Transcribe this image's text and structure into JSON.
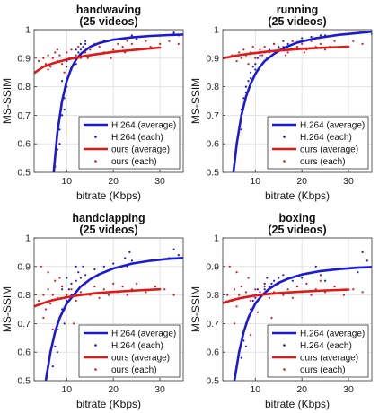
{
  "colors": {
    "h264": "#1a1ad6",
    "ours": "#e01818",
    "grid": "#e3e3e3",
    "axis": "#333333"
  },
  "chart_data": [
    {
      "type": "scatter",
      "title": "handwaving",
      "subtitle": "(25 videos)",
      "xlabel": "bitrate (Kbps)",
      "ylabel": "MS-SSIM",
      "xlim": [
        3,
        35
      ],
      "ylim": [
        0.5,
        1.0
      ],
      "xticks": [
        "10",
        "20",
        "30"
      ],
      "xtick_values": [
        10,
        20,
        30
      ],
      "yticks": [
        "0.5",
        "0.6",
        "0.7",
        "0.8",
        "0.9",
        "1"
      ],
      "ytick_values": [
        0.5,
        0.6,
        0.7,
        0.8,
        0.9,
        1.0
      ],
      "grid": true,
      "legend_position": "bottom-right",
      "series": [
        {
          "name": "H.264 (average)",
          "style": "line",
          "color": "#1a1ad6",
          "x": [
            7.2,
            8,
            9,
            10,
            11,
            12,
            13,
            15,
            17,
            20,
            24,
            28,
            32,
            35
          ],
          "y": [
            0.5,
            0.64,
            0.75,
            0.82,
            0.865,
            0.895,
            0.915,
            0.94,
            0.953,
            0.965,
            0.973,
            0.978,
            0.981,
            0.983
          ]
        },
        {
          "name": "H.264 (each)",
          "style": "points",
          "color": "#1a1ad6",
          "x": [
            7.5,
            8,
            8.5,
            9,
            9.5,
            10,
            10.5,
            11,
            11.5,
            12,
            12.5,
            13,
            13.5,
            14,
            10,
            11,
            12,
            13,
            14,
            15,
            16,
            18,
            20,
            23,
            24,
            24,
            25,
            33,
            33,
            34,
            9,
            10,
            12,
            13,
            8.5,
            9.5
          ],
          "y": [
            0.52,
            0.58,
            0.65,
            0.7,
            0.76,
            0.8,
            0.84,
            0.86,
            0.88,
            0.9,
            0.92,
            0.93,
            0.94,
            0.95,
            0.87,
            0.9,
            0.93,
            0.95,
            0.96,
            0.94,
            0.95,
            0.96,
            0.965,
            0.97,
            0.975,
            0.98,
            0.968,
            0.985,
            0.99,
            0.98,
            0.82,
            0.89,
            0.88,
            0.91,
            0.6,
            0.72
          ]
        },
        {
          "name": "ours (average)",
          "style": "line",
          "color": "#e01818",
          "x": [
            3,
            5,
            7,
            10,
            13,
            16,
            20,
            25,
            30
          ],
          "y": [
            0.848,
            0.87,
            0.882,
            0.895,
            0.905,
            0.913,
            0.922,
            0.93,
            0.937
          ]
        },
        {
          "name": "ours (each)",
          "style": "points",
          "color": "#e01818",
          "x": [
            4,
            5,
            5.5,
            6,
            6.5,
            7,
            7.5,
            8,
            8.5,
            9,
            10,
            10.5,
            11,
            12,
            12.5,
            13,
            14,
            15,
            16,
            17,
            18,
            19,
            20,
            21,
            22,
            23,
            24,
            25,
            27,
            28,
            30,
            32,
            34,
            6,
            8,
            9.5,
            11.5,
            14.5,
            19.5,
            22.5
          ],
          "y": [
            0.89,
            0.9,
            0.88,
            0.91,
            0.87,
            0.9,
            0.92,
            0.89,
            0.91,
            0.88,
            0.92,
            0.9,
            0.93,
            0.91,
            0.94,
            0.9,
            0.92,
            0.93,
            0.95,
            0.94,
            0.92,
            0.96,
            0.93,
            0.95,
            0.94,
            0.96,
            0.95,
            0.93,
            0.96,
            0.94,
            0.95,
            0.96,
            0.95,
            0.86,
            0.93,
            0.85,
            0.88,
            0.9,
            0.9,
            0.92
          ]
        }
      ]
    },
    {
      "type": "scatter",
      "title": "running",
      "subtitle": "(25 videos)",
      "xlabel": "bitrate (Kbps)",
      "ylabel": "MS-SSIM",
      "xlim": [
        3,
        35
      ],
      "ylim": [
        0.5,
        1.0
      ],
      "xticks": [
        "10",
        "20",
        "30"
      ],
      "xtick_values": [
        10,
        20,
        30
      ],
      "yticks": [
        "0.5",
        "0.6",
        "0.7",
        "0.8",
        "0.9",
        "1"
      ],
      "ytick_values": [
        0.5,
        0.6,
        0.7,
        0.8,
        0.9,
        1.0
      ],
      "grid": true,
      "legend_position": "bottom-right",
      "series": [
        {
          "name": "H.264 (average)",
          "style": "line",
          "color": "#1a1ad6",
          "x": [
            5.3,
            6,
            7,
            8,
            9,
            10,
            11,
            12,
            14,
            16,
            19,
            23,
            28,
            35
          ],
          "y": [
            0.5,
            0.6,
            0.7,
            0.765,
            0.81,
            0.845,
            0.87,
            0.89,
            0.915,
            0.935,
            0.955,
            0.97,
            0.982,
            0.993
          ]
        },
        {
          "name": "H.264 (each)",
          "style": "points",
          "color": "#1a1ad6",
          "x": [
            6,
            6.5,
            7,
            7.5,
            8,
            8.5,
            9,
            9.5,
            10,
            10.5,
            11,
            12,
            13,
            14,
            15,
            16,
            17,
            18,
            20,
            22,
            24,
            25,
            33,
            34,
            35,
            7,
            8,
            9,
            10
          ],
          "y": [
            0.6,
            0.66,
            0.72,
            0.76,
            0.8,
            0.82,
            0.85,
            0.87,
            0.88,
            0.9,
            0.91,
            0.92,
            0.93,
            0.95,
            0.94,
            0.96,
            0.95,
            0.96,
            0.97,
            0.975,
            0.98,
            0.98,
            0.99,
            0.99,
            0.985,
            0.65,
            0.78,
            0.83,
            0.86
          ]
        },
        {
          "name": "ours (average)",
          "style": "line",
          "color": "#e01818",
          "x": [
            3,
            5,
            7,
            10,
            13,
            16,
            20,
            25,
            30
          ],
          "y": [
            0.9,
            0.906,
            0.912,
            0.918,
            0.924,
            0.928,
            0.933,
            0.937,
            0.94
          ]
        },
        {
          "name": "ours (each)",
          "style": "points",
          "color": "#e01818",
          "x": [
            5,
            6,
            6.5,
            7,
            7.5,
            8,
            9,
            9.5,
            10,
            11,
            11.5,
            12,
            13,
            14,
            15,
            16,
            17,
            18,
            19,
            20,
            21,
            22,
            23,
            24,
            25,
            27,
            29,
            31,
            33,
            8.5,
            12.5,
            16.5,
            20.5,
            26
          ],
          "y": [
            0.91,
            0.89,
            0.92,
            0.9,
            0.93,
            0.91,
            0.92,
            0.94,
            0.9,
            0.93,
            0.91,
            0.94,
            0.92,
            0.95,
            0.93,
            0.94,
            0.92,
            0.96,
            0.94,
            0.95,
            0.93,
            0.96,
            0.94,
            0.95,
            0.93,
            0.96,
            0.94,
            0.96,
            0.95,
            0.88,
            0.9,
            0.91,
            0.92,
            0.94
          ]
        }
      ]
    },
    {
      "type": "scatter",
      "title": "handclapping",
      "subtitle": "(25 videos)",
      "xlabel": "bitrate (Kbps)",
      "ylabel": "MS-SSIM",
      "xlim": [
        3,
        35
      ],
      "ylim": [
        0.5,
        1.0
      ],
      "xticks": [
        "10",
        "20",
        "30"
      ],
      "xtick_values": [
        10,
        20,
        30
      ],
      "yticks": [
        "0.5",
        "0.6",
        "0.7",
        "0.8",
        "0.9",
        "1"
      ],
      "ytick_values": [
        0.5,
        0.6,
        0.7,
        0.8,
        0.9,
        1.0
      ],
      "grid": true,
      "legend_position": "bottom-right",
      "series": [
        {
          "name": "H.264 (average)",
          "style": "line",
          "color": "#1a1ad6",
          "x": [
            5.5,
            6.5,
            7.5,
            8.5,
            10,
            11.5,
            13,
            15,
            17,
            20,
            24,
            28,
            32,
            35
          ],
          "y": [
            0.5,
            0.6,
            0.67,
            0.72,
            0.77,
            0.8,
            0.83,
            0.855,
            0.873,
            0.893,
            0.91,
            0.92,
            0.927,
            0.93
          ]
        },
        {
          "name": "H.264 (each)",
          "style": "points",
          "color": "#1a1ad6",
          "x": [
            7,
            7.5,
            8,
            8.5,
            9,
            9.5,
            10,
            10.5,
            11,
            12,
            12.5,
            13,
            13.5,
            14,
            16,
            18,
            20,
            22.5,
            23,
            23.5,
            24,
            32,
            33,
            34,
            8,
            9,
            10,
            11,
            12,
            13
          ],
          "y": [
            0.55,
            0.62,
            0.68,
            0.72,
            0.75,
            0.7,
            0.78,
            0.82,
            0.8,
            0.85,
            0.88,
            0.86,
            0.9,
            0.87,
            0.89,
            0.9,
            0.91,
            0.93,
            0.9,
            0.95,
            0.92,
            0.93,
            0.96,
            0.94,
            0.6,
            0.82,
            0.86,
            0.84,
            0.9,
            0.83
          ]
        },
        {
          "name": "ours (average)",
          "style": "line",
          "color": "#e01818",
          "x": [
            3,
            5,
            7,
            10,
            13,
            16,
            20,
            25,
            30
          ],
          "y": [
            0.76,
            0.772,
            0.782,
            0.792,
            0.8,
            0.806,
            0.811,
            0.816,
            0.82
          ]
        },
        {
          "name": "ours (each)",
          "style": "points",
          "color": "#e01818",
          "x": [
            4,
            5,
            5.5,
            6,
            6.5,
            7,
            7.5,
            8,
            9,
            10,
            11,
            12,
            13,
            14,
            15,
            16,
            17,
            18,
            19,
            20,
            21,
            22,
            23,
            24,
            25,
            27,
            29,
            31,
            33,
            4.5,
            6,
            8.5,
            9.5,
            11.5,
            5,
            7
          ],
          "y": [
            0.78,
            0.8,
            0.75,
            0.82,
            0.77,
            0.8,
            0.85,
            0.79,
            0.83,
            0.8,
            0.82,
            0.78,
            0.81,
            0.84,
            0.8,
            0.83,
            0.79,
            0.82,
            0.8,
            0.84,
            0.81,
            0.83,
            0.8,
            0.82,
            0.84,
            0.81,
            0.83,
            0.82,
            0.8,
            0.9,
            0.88,
            0.86,
            0.75,
            0.7,
            0.72,
            0.68
          ]
        }
      ]
    },
    {
      "type": "scatter",
      "title": "boxing",
      "subtitle": "(25 videos)",
      "xlabel": "bitrate (Kbps)",
      "ylabel": "MS-SSIM",
      "xlim": [
        3,
        35
      ],
      "ylim": [
        0.5,
        1.0
      ],
      "xticks": [
        "10",
        "20",
        "30"
      ],
      "xtick_values": [
        10,
        20,
        30
      ],
      "yticks": [
        "0.5",
        "0.6",
        "0.7",
        "0.8",
        "0.9",
        "1"
      ],
      "ytick_values": [
        0.5,
        0.6,
        0.7,
        0.8,
        0.9,
        1.0
      ],
      "grid": true,
      "legend_position": "bottom-right",
      "series": [
        {
          "name": "H.264 (average)",
          "style": "line",
          "color": "#1a1ad6",
          "x": [
            5.5,
            6.5,
            7.5,
            8.5,
            10,
            11.5,
            13,
            15,
            17,
            20,
            24,
            28,
            32,
            35
          ],
          "y": [
            0.5,
            0.6,
            0.67,
            0.72,
            0.77,
            0.8,
            0.822,
            0.843,
            0.857,
            0.872,
            0.884,
            0.891,
            0.896,
            0.898
          ]
        },
        {
          "name": "H.264 (each)",
          "style": "points",
          "color": "#1a1ad6",
          "x": [
            7,
            7.5,
            8,
            8.5,
            9,
            9.5,
            10,
            10.5,
            11,
            12,
            12.5,
            13,
            14,
            15,
            16,
            18,
            20,
            22.5,
            23,
            24,
            25,
            32,
            33,
            34,
            8,
            10,
            12,
            13.5
          ],
          "y": [
            0.58,
            0.64,
            0.7,
            0.72,
            0.75,
            0.78,
            0.8,
            0.82,
            0.81,
            0.84,
            0.86,
            0.83,
            0.85,
            0.86,
            0.87,
            0.85,
            0.86,
            0.88,
            0.9,
            0.87,
            0.85,
            0.88,
            0.95,
            0.92,
            0.62,
            0.79,
            0.82,
            0.84
          ]
        },
        {
          "name": "ours (average)",
          "style": "line",
          "color": "#e01818",
          "x": [
            3,
            5,
            7,
            10,
            13,
            16,
            20,
            25,
            30
          ],
          "y": [
            0.772,
            0.782,
            0.79,
            0.798,
            0.804,
            0.808,
            0.812,
            0.816,
            0.819
          ]
        },
        {
          "name": "ours (each)",
          "style": "points",
          "color": "#e01818",
          "x": [
            4,
            5,
            5.5,
            6,
            6.5,
            7,
            7.5,
            8,
            9,
            10,
            11,
            12,
            13,
            14,
            15,
            16,
            17,
            18,
            19,
            20,
            21,
            22,
            23,
            24,
            25,
            27,
            29,
            31,
            33,
            4.5,
            6,
            8.5,
            10.5,
            13.5,
            5.5,
            9
          ],
          "y": [
            0.8,
            0.78,
            0.82,
            0.76,
            0.8,
            0.83,
            0.79,
            0.81,
            0.78,
            0.82,
            0.8,
            0.83,
            0.79,
            0.81,
            0.84,
            0.8,
            0.82,
            0.79,
            0.83,
            0.81,
            0.84,
            0.8,
            0.82,
            0.85,
            0.81,
            0.83,
            0.8,
            0.82,
            0.81,
            0.9,
            0.88,
            0.86,
            0.74,
            0.72,
            0.7,
            0.66
          ]
        }
      ]
    }
  ]
}
